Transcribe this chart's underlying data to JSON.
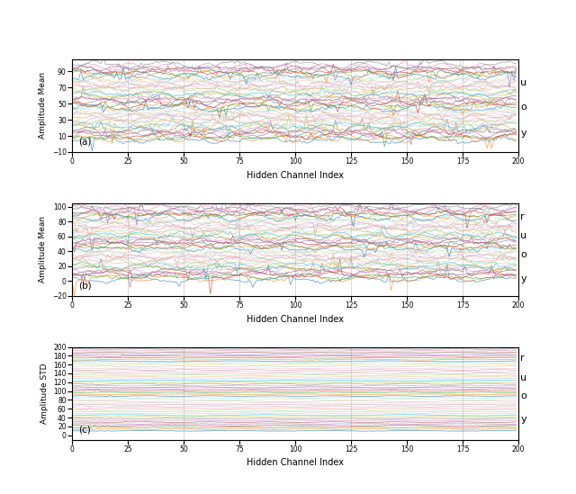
{
  "n_channels": 200,
  "n_lines": 48,
  "subplot_a_ylabel": "Amplitude Mean",
  "subplot_b_ylabel": "Amplitude Mean",
  "subplot_c_ylabel": "Amplitude STD",
  "xlabel": "Hidden Channel Index",
  "subplot_a_labels": [
    "u",
    "o",
    "y"
  ],
  "subplot_b_labels": [
    "r",
    "u",
    "o",
    "y"
  ],
  "subplot_c_labels": [
    "r",
    "u",
    "o",
    "y"
  ],
  "subplot_a_label": "(a)",
  "subplot_b_label": "(b)",
  "subplot_c_label": "(c)",
  "subplot_a_ylim": [
    -10,
    105
  ],
  "subplot_b_ylim": [
    -20,
    105
  ],
  "subplot_c_ylim": [
    -10,
    200
  ],
  "subplot_a_yticks": [
    -10,
    10,
    30,
    50,
    70,
    90
  ],
  "subplot_b_yticks": [
    -20,
    0,
    20,
    40,
    60,
    80,
    100
  ],
  "subplot_c_yticks": [
    0,
    20,
    40,
    60,
    80,
    100,
    120,
    140,
    160,
    180,
    200
  ],
  "xticks": [
    0,
    25,
    50,
    75,
    100,
    125,
    150,
    175,
    200
  ],
  "grid_color": "#bbbbbb",
  "background": "#ffffff",
  "line_alpha": 0.75,
  "line_width": 0.5,
  "seed": 7
}
